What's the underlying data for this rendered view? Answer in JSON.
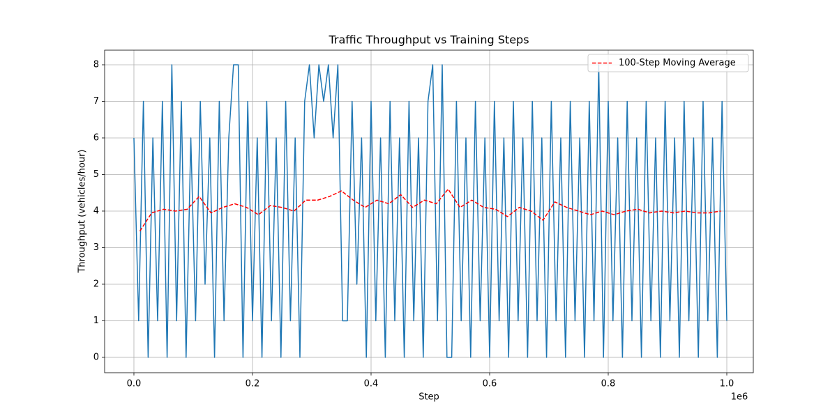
{
  "chart_data": {
    "type": "line",
    "title": "Traffic Throughput vs Training Steps",
    "xlabel": "Step",
    "ylabel": "Throughput (vehicles/hour)",
    "x_offset_label": "1e6",
    "xlim": [
      -49400,
      1044700
    ],
    "ylim": [
      -0.42,
      8.4
    ],
    "xticks": [
      {
        "value": 0,
        "label": "0.0"
      },
      {
        "value": 200000,
        "label": "0.2"
      },
      {
        "value": 400000,
        "label": "0.4"
      },
      {
        "value": 600000,
        "label": "0.6"
      },
      {
        "value": 800000,
        "label": "0.8"
      },
      {
        "value": 1000000,
        "label": "1.0"
      }
    ],
    "yticks": [
      0,
      1,
      2,
      3,
      4,
      5,
      6,
      7,
      8
    ],
    "grid": true,
    "legend": "upper right",
    "series": [
      {
        "color": "#1f77b4",
        "style": "solid",
        "x": [
          0,
          8000,
          16000,
          24000,
          32000,
          40000,
          48000,
          56000,
          64000,
          72000,
          80000,
          88000,
          96000,
          104000,
          112000,
          120000,
          128000,
          136000,
          144000,
          152000,
          160000,
          168000,
          176000,
          184000,
          192000,
          200000,
          208000,
          216000,
          224000,
          232000,
          240000,
          248000,
          256000,
          264000,
          272000,
          280000,
          288000,
          296000,
          304000,
          312000,
          320000,
          328000,
          336000,
          344000,
          352000,
          360000,
          368000,
          376000,
          384000,
          392000,
          400000,
          408000,
          416000,
          424000,
          432000,
          440000,
          448000,
          456000,
          464000,
          472000,
          480000,
          488000,
          496000,
          504000,
          512000,
          520000,
          528000,
          536000,
          544000,
          552000,
          560000,
          568000,
          576000,
          584000,
          592000,
          600000,
          608000,
          616000,
          624000,
          632000,
          640000,
          648000,
          656000,
          664000,
          672000,
          680000,
          688000,
          696000,
          704000,
          712000,
          720000,
          728000,
          736000,
          744000,
          752000,
          760000,
          768000,
          776000,
          784000,
          792000,
          800000,
          808000,
          816000,
          824000,
          832000,
          840000,
          848000,
          856000,
          864000,
          872000,
          880000,
          888000,
          896000,
          904000,
          912000,
          920000,
          928000,
          936000,
          944000,
          952000,
          960000,
          968000,
          976000,
          984000,
          992000,
          1000000
        ],
        "values": [
          6,
          1,
          7,
          0,
          6,
          1,
          7,
          0,
          8,
          1,
          7,
          0,
          6,
          1,
          7,
          2,
          6,
          0,
          7,
          1,
          6,
          8,
          8,
          0,
          7,
          1,
          6,
          0,
          7,
          1,
          6,
          0,
          7,
          1,
          6,
          0,
          7,
          8,
          6,
          8,
          7,
          8,
          6,
          8,
          1,
          1,
          7,
          2,
          6,
          0,
          7,
          1,
          6,
          0,
          7,
          1,
          6,
          0,
          7,
          1,
          6,
          0,
          7,
          8,
          1,
          8,
          0,
          0,
          7,
          1,
          6,
          0,
          7,
          1,
          6,
          0,
          7,
          1,
          6,
          0,
          7,
          1,
          6,
          0,
          7,
          1,
          6,
          0,
          7,
          1,
          6,
          0,
          7,
          1,
          6,
          0,
          7,
          1,
          8,
          0,
          7,
          1,
          6,
          0,
          7,
          1,
          6,
          0,
          7,
          1,
          6,
          0,
          7,
          1,
          6,
          0,
          7,
          1,
          6,
          0,
          7,
          1,
          6,
          0,
          7,
          1
        ]
      },
      {
        "name": "100-Step Moving Average",
        "color": "#ff0000",
        "style": "dashed",
        "x": [
          10000,
          30000,
          50000,
          70000,
          90000,
          110000,
          130000,
          150000,
          170000,
          190000,
          210000,
          230000,
          250000,
          270000,
          290000,
          310000,
          330000,
          350000,
          370000,
          390000,
          410000,
          430000,
          450000,
          470000,
          490000,
          510000,
          530000,
          550000,
          570000,
          590000,
          610000,
          630000,
          650000,
          670000,
          690000,
          710000,
          730000,
          750000,
          770000,
          790000,
          810000,
          830000,
          850000,
          870000,
          890000,
          910000,
          930000,
          950000,
          970000,
          990000
        ],
        "values": [
          3.45,
          3.95,
          4.05,
          4.0,
          4.05,
          4.4,
          3.95,
          4.1,
          4.2,
          4.1,
          3.9,
          4.15,
          4.1,
          4.0,
          4.3,
          4.3,
          4.4,
          4.55,
          4.3,
          4.1,
          4.3,
          4.2,
          4.45,
          4.1,
          4.3,
          4.2,
          4.6,
          4.1,
          4.3,
          4.1,
          4.05,
          3.85,
          4.1,
          4.0,
          3.75,
          4.25,
          4.1,
          4.0,
          3.9,
          4.0,
          3.9,
          4.0,
          4.05,
          3.95,
          4.0,
          3.95,
          4.0,
          3.95,
          3.95,
          4.0
        ]
      }
    ]
  }
}
